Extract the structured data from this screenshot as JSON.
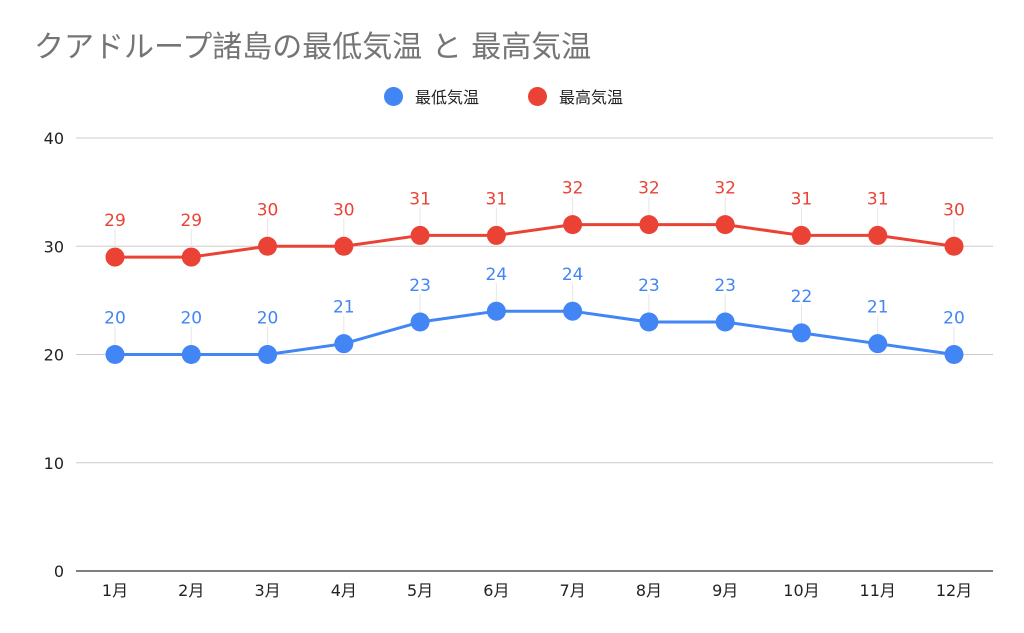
{
  "chart_data": {
    "type": "line",
    "title": "クアドループ諸島の最低気温 と 最高気温",
    "categories": [
      "1月",
      "2月",
      "3月",
      "4月",
      "5月",
      "6月",
      "7月",
      "8月",
      "9月",
      "10月",
      "11月",
      "12月"
    ],
    "series": [
      {
        "name": "最低気温",
        "color": "#4285f4",
        "values": [
          20,
          20,
          20,
          21,
          23,
          24,
          24,
          23,
          23,
          22,
          21,
          20
        ]
      },
      {
        "name": "最高気温",
        "color": "#ea4335",
        "values": [
          29,
          29,
          30,
          30,
          31,
          31,
          32,
          32,
          32,
          31,
          31,
          30
        ]
      }
    ],
    "ylim": [
      0,
      40
    ],
    "yticks": [
      0,
      10,
      20,
      30,
      40
    ],
    "grid": true,
    "legend": "top-center",
    "data_labels": true
  }
}
